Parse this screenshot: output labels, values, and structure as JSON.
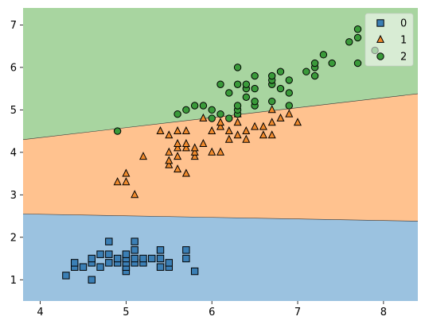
{
  "chart_data": {
    "type": "scatter",
    "title": "",
    "xlabel": "",
    "ylabel": "",
    "xlim": [
      3.8,
      8.4
    ],
    "ylim": [
      0.5,
      7.4
    ],
    "xticks": [
      4,
      5,
      6,
      7,
      8
    ],
    "yticks": [
      1,
      2,
      3,
      4,
      5,
      6,
      7
    ],
    "xtick_labels": [
      "4",
      "5",
      "6",
      "7",
      "8"
    ],
    "ytick_labels": [
      "1",
      "2",
      "3",
      "4",
      "5",
      "6",
      "7"
    ],
    "grid": false,
    "legend_placement": "top-right",
    "decision_regions": {
      "boundary_0_1": {
        "x": [
          3.8,
          8.4
        ],
        "y": [
          2.55,
          2.38
        ]
      },
      "boundary_1_2": {
        "x": [
          3.8,
          8.4
        ],
        "y": [
          4.3,
          5.38
        ]
      },
      "colors": {
        "region_0": "#9bc2e0",
        "region_1": "#ffc28f",
        "region_2": "#a8d5a0"
      }
    },
    "series": [
      {
        "name": "0",
        "marker": "square",
        "color": "#3b7fb5",
        "points": [
          [
            4.3,
            1.1
          ],
          [
            4.4,
            1.3
          ],
          [
            4.4,
            1.4
          ],
          [
            4.5,
            1.3
          ],
          [
            4.6,
            1.0
          ],
          [
            4.6,
            1.4
          ],
          [
            4.6,
            1.5
          ],
          [
            4.7,
            1.3
          ],
          [
            4.7,
            1.6
          ],
          [
            4.8,
            1.4
          ],
          [
            4.8,
            1.6
          ],
          [
            4.8,
            1.9
          ],
          [
            4.9,
            1.4
          ],
          [
            4.9,
            1.5
          ],
          [
            5.0,
            1.2
          ],
          [
            5.0,
            1.3
          ],
          [
            5.0,
            1.4
          ],
          [
            5.0,
            1.5
          ],
          [
            5.0,
            1.6
          ],
          [
            5.1,
            1.4
          ],
          [
            5.1,
            1.5
          ],
          [
            5.1,
            1.7
          ],
          [
            5.1,
            1.9
          ],
          [
            5.2,
            1.4
          ],
          [
            5.2,
            1.5
          ],
          [
            5.3,
            1.5
          ],
          [
            5.4,
            1.3
          ],
          [
            5.4,
            1.5
          ],
          [
            5.4,
            1.7
          ],
          [
            5.5,
            1.3
          ],
          [
            5.5,
            1.4
          ],
          [
            5.7,
            1.5
          ],
          [
            5.7,
            1.7
          ],
          [
            5.8,
            1.2
          ]
        ]
      },
      {
        "name": "1",
        "marker": "triangle",
        "color": "#f08a2c",
        "points": [
          [
            4.9,
            3.3
          ],
          [
            5.0,
            3.3
          ],
          [
            5.0,
            3.5
          ],
          [
            5.1,
            3.0
          ],
          [
            5.2,
            3.9
          ],
          [
            5.4,
            4.5
          ],
          [
            5.5,
            3.7
          ],
          [
            5.5,
            3.8
          ],
          [
            5.5,
            4.0
          ],
          [
            5.5,
            4.4
          ],
          [
            5.6,
            3.6
          ],
          [
            5.6,
            3.9
          ],
          [
            5.6,
            4.1
          ],
          [
            5.6,
            4.2
          ],
          [
            5.6,
            4.5
          ],
          [
            5.7,
            3.5
          ],
          [
            5.7,
            4.1
          ],
          [
            5.7,
            4.2
          ],
          [
            5.7,
            4.5
          ],
          [
            5.8,
            3.9
          ],
          [
            5.8,
            4.0
          ],
          [
            5.8,
            4.1
          ],
          [
            5.9,
            4.2
          ],
          [
            5.9,
            4.8
          ],
          [
            6.0,
            4.0
          ],
          [
            6.0,
            4.5
          ],
          [
            6.1,
            4.0
          ],
          [
            6.1,
            4.6
          ],
          [
            6.1,
            4.7
          ],
          [
            6.2,
            4.3
          ],
          [
            6.2,
            4.5
          ],
          [
            6.3,
            4.4
          ],
          [
            6.3,
            4.7
          ],
          [
            6.3,
            4.9
          ],
          [
            6.4,
            4.3
          ],
          [
            6.4,
            4.5
          ],
          [
            6.5,
            4.6
          ],
          [
            6.6,
            4.4
          ],
          [
            6.6,
            4.6
          ],
          [
            6.7,
            4.4
          ],
          [
            6.7,
            4.7
          ],
          [
            6.7,
            5.0
          ],
          [
            6.8,
            4.8
          ],
          [
            6.9,
            4.9
          ],
          [
            7.0,
            4.7
          ]
        ]
      },
      {
        "name": "2",
        "marker": "circle",
        "color": "#3a9a3a",
        "points": [
          [
            4.9,
            4.5
          ],
          [
            5.6,
            4.9
          ],
          [
            5.7,
            5.0
          ],
          [
            5.8,
            5.1
          ],
          [
            5.9,
            5.1
          ],
          [
            6.0,
            4.8
          ],
          [
            6.0,
            5.0
          ],
          [
            6.1,
            4.9
          ],
          [
            6.1,
            5.6
          ],
          [
            6.2,
            4.8
          ],
          [
            6.2,
            5.4
          ],
          [
            6.3,
            4.9
          ],
          [
            6.3,
            5.0
          ],
          [
            6.3,
            5.1
          ],
          [
            6.3,
            5.6
          ],
          [
            6.3,
            6.0
          ],
          [
            6.4,
            5.3
          ],
          [
            6.4,
            5.5
          ],
          [
            6.4,
            5.6
          ],
          [
            6.5,
            5.1
          ],
          [
            6.5,
            5.2
          ],
          [
            6.5,
            5.5
          ],
          [
            6.5,
            5.8
          ],
          [
            6.7,
            5.2
          ],
          [
            6.7,
            5.6
          ],
          [
            6.7,
            5.7
          ],
          [
            6.7,
            5.8
          ],
          [
            6.8,
            5.5
          ],
          [
            6.8,
            5.9
          ],
          [
            6.9,
            5.1
          ],
          [
            6.9,
            5.4
          ],
          [
            6.9,
            5.7
          ],
          [
            7.1,
            5.9
          ],
          [
            7.2,
            5.8
          ],
          [
            7.2,
            6.0
          ],
          [
            7.2,
            6.1
          ],
          [
            7.3,
            6.3
          ],
          [
            7.4,
            6.1
          ],
          [
            7.6,
            6.6
          ],
          [
            7.7,
            6.1
          ],
          [
            7.7,
            6.7
          ],
          [
            7.7,
            6.9
          ],
          [
            7.9,
            6.4
          ]
        ]
      }
    ]
  }
}
